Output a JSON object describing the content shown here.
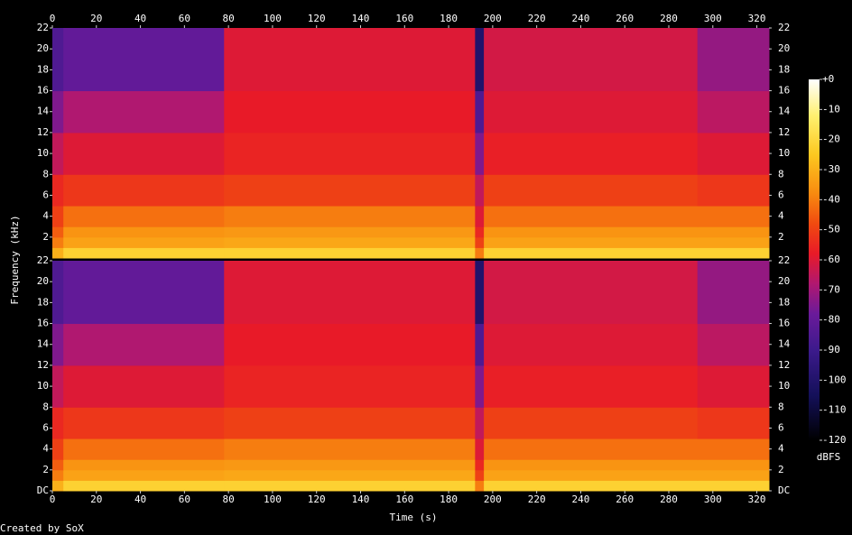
{
  "chart_data": [
    {
      "type": "heatmap",
      "ylabel": "Frequency (kHz)",
      "x_edges": [
        0,
        5,
        78,
        192,
        196,
        293,
        325.5
      ],
      "y_edges": [
        0,
        1,
        2,
        3,
        5,
        8,
        12,
        16,
        22
      ],
      "values": [
        [
          -30,
          -22,
          -22,
          -40,
          -22,
          -22
        ],
        [
          -40,
          -33,
          -32,
          -50,
          -33,
          -33
        ],
        [
          -45,
          -36,
          -35,
          -55,
          -36,
          -36
        ],
        [
          -50,
          -42,
          -40,
          -60,
          -42,
          -42
        ],
        [
          -55,
          -52,
          -50,
          -65,
          -50,
          -52
        ],
        [
          -65,
          -60,
          -56,
          -75,
          -57,
          -60
        ],
        [
          -75,
          -68,
          -58,
          -85,
          -60,
          -66
        ],
        [
          -85,
          -80,
          -60,
          -100,
          -62,
          -72
        ]
      ],
      "xlim": [
        0,
        325.5
      ],
      "ylim": [
        0,
        22
      ],
      "xticks": [
        0,
        20,
        40,
        60,
        80,
        100,
        120,
        140,
        160,
        180,
        200,
        220,
        240,
        260,
        280,
        300,
        320
      ],
      "xticks_side": "top",
      "yticks": [
        2,
        4,
        6,
        8,
        10,
        12,
        14,
        16,
        18,
        20,
        22
      ]
    },
    {
      "type": "heatmap",
      "xlabel": "Time (s)",
      "x_edges": [
        0,
        5,
        78,
        192,
        196,
        293,
        325.5
      ],
      "y_edges": [
        0,
        1,
        2,
        3,
        5,
        8,
        12,
        16,
        22
      ],
      "values": [
        [
          -30,
          -22,
          -22,
          -40,
          -22,
          -22
        ],
        [
          -40,
          -33,
          -32,
          -50,
          -33,
          -33
        ],
        [
          -45,
          -36,
          -35,
          -55,
          -36,
          -36
        ],
        [
          -50,
          -42,
          -40,
          -60,
          -42,
          -42
        ],
        [
          -55,
          -52,
          -50,
          -65,
          -50,
          -52
        ],
        [
          -65,
          -60,
          -56,
          -75,
          -57,
          -60
        ],
        [
          -75,
          -68,
          -58,
          -85,
          -60,
          -66
        ],
        [
          -85,
          -80,
          -60,
          -100,
          -62,
          -72
        ]
      ],
      "xlim": [
        0,
        325.5
      ],
      "ylim": [
        0,
        22
      ],
      "xticks": [
        0,
        20,
        40,
        60,
        80,
        100,
        120,
        140,
        160,
        180,
        200,
        220,
        240,
        260,
        280,
        300,
        320
      ],
      "xticks_side": "bottom",
      "yticks": [
        {
          "value": 0,
          "label": "DC"
        },
        2,
        4,
        6,
        8,
        10,
        12,
        14,
        16,
        18,
        20,
        22
      ]
    }
  ],
  "colorbar": {
    "label": "dBFS",
    "lim": [
      -120,
      0
    ],
    "ticks": [
      {
        "value": 0,
        "label": "+0"
      },
      -10,
      -20,
      -30,
      -40,
      -50,
      -60,
      -70,
      -80,
      -90,
      -100,
      -110,
      -120
    ],
    "colormap": [
      {
        "value": -120,
        "color": "#000000"
      },
      {
        "value": -105,
        "color": "#14105a"
      },
      {
        "value": -90,
        "color": "#3c1a8c"
      },
      {
        "value": -78,
        "color": "#6a1a9a"
      },
      {
        "value": -68,
        "color": "#b01870"
      },
      {
        "value": -58,
        "color": "#e81a28"
      },
      {
        "value": -48,
        "color": "#f04a10"
      },
      {
        "value": -38,
        "color": "#f88a10"
      },
      {
        "value": -25,
        "color": "#fcc820"
      },
      {
        "value": -12,
        "color": "#fff070"
      },
      {
        "value": 0,
        "color": "#ffffff"
      }
    ]
  },
  "footer": "Created by SoX"
}
